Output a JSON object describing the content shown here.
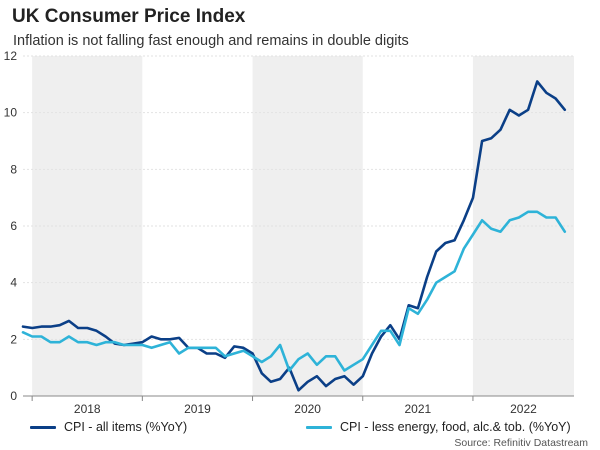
{
  "chart_data": {
    "type": "line",
    "title": "UK Consumer Price Index",
    "subtitle": "Inflation is not falling fast enough and remains in double digits",
    "source": "Source: Refinitiv Datastream",
    "ylim": [
      0,
      12
    ],
    "yticks": [
      "0",
      "2",
      "4",
      "6",
      "8",
      "10",
      "12"
    ],
    "year_labels": [
      "2018",
      "2019",
      "2020",
      "2021",
      "2022"
    ],
    "x_start": 2017.917,
    "x_end": 2022.917,
    "shaded_years": [
      2018,
      2020,
      2022
    ],
    "grid": true,
    "colors": {
      "shade": "#efefef",
      "grid": "#e2e2e2",
      "axis": "#888888"
    },
    "series": [
      {
        "name": "CPI - all items (%YoY)",
        "color": "#0b3f87",
        "start": 2017.917,
        "step": 0.08333,
        "values": [
          2.45,
          2.4,
          2.45,
          2.45,
          2.5,
          2.65,
          2.4,
          2.4,
          2.3,
          2.1,
          1.85,
          1.8,
          1.85,
          1.9,
          2.1,
          2.0,
          2.0,
          2.05,
          1.7,
          1.7,
          1.5,
          1.5,
          1.35,
          1.75,
          1.7,
          1.5,
          0.8,
          0.5,
          0.6,
          1.0,
          0.2,
          0.5,
          0.7,
          0.35,
          0.6,
          0.7,
          0.4,
          0.7,
          1.5,
          2.1,
          2.5,
          2.0,
          3.2,
          3.1,
          4.2,
          5.1,
          5.4,
          5.5,
          6.2,
          7.0,
          9.0,
          9.1,
          9.4,
          10.1,
          9.9,
          10.1,
          11.1,
          10.7,
          10.5,
          10.1
        ]
      },
      {
        "name": "CPI - less energy, food, alc.& tob. (%YoY)",
        "color": "#2eb3d8",
        "start": 2017.917,
        "step": 0.08333,
        "values": [
          2.25,
          2.1,
          2.1,
          1.9,
          1.9,
          2.1,
          1.9,
          1.9,
          1.8,
          1.9,
          1.9,
          1.8,
          1.8,
          1.8,
          1.7,
          1.8,
          1.9,
          1.5,
          1.7,
          1.7,
          1.7,
          1.7,
          1.4,
          1.5,
          1.6,
          1.4,
          1.2,
          1.4,
          1.8,
          0.9,
          1.3,
          1.5,
          1.1,
          1.4,
          1.4,
          0.9,
          1.1,
          1.3,
          1.8,
          2.3,
          2.3,
          1.8,
          3.1,
          2.9,
          3.4,
          4.0,
          4.2,
          4.4,
          5.2,
          5.7,
          6.2,
          5.9,
          5.8,
          6.2,
          6.3,
          6.5,
          6.5,
          6.3,
          6.3,
          5.8
        ]
      }
    ]
  }
}
